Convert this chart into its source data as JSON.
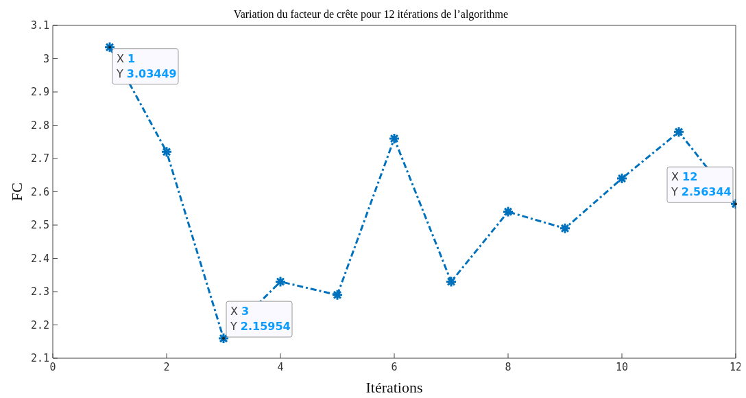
{
  "chart_data": {
    "type": "line",
    "title": "Variation du facteur de crête pour 12 itérations de l’algorithme",
    "xlabel": "Itérations",
    "ylabel": "FC",
    "x": [
      1,
      2,
      3,
      4,
      5,
      6,
      7,
      8,
      9,
      10,
      11,
      12
    ],
    "series": [
      {
        "color": "#0072bd",
        "values": [
          3.03449,
          2.72,
          2.15954,
          2.33,
          2.29,
          2.76,
          2.33,
          2.54,
          2.49,
          2.64,
          2.78,
          2.56344
        ]
      }
    ],
    "xlim": [
      0,
      12
    ],
    "xticks": [
      0,
      2,
      4,
      6,
      8,
      10,
      12
    ],
    "ylim": [
      2.1,
      3.1
    ],
    "yticks": [
      2.1,
      2.2,
      2.3,
      2.4,
      2.5,
      2.6,
      2.7,
      2.8,
      2.9,
      3,
      3.1
    ],
    "marker": "cross",
    "line_style": "dashed",
    "legend": false,
    "grid": false,
    "annotations": [
      {
        "text": "X 1\nY 3.03449",
        "x": 1,
        "y": 3.03449
      },
      {
        "text": "X 3\nY 2.15954",
        "x": 3,
        "y": 2.15954
      },
      {
        "text": "X 12\nY 2.56344",
        "x": 12,
        "y": 2.56344
      }
    ]
  }
}
